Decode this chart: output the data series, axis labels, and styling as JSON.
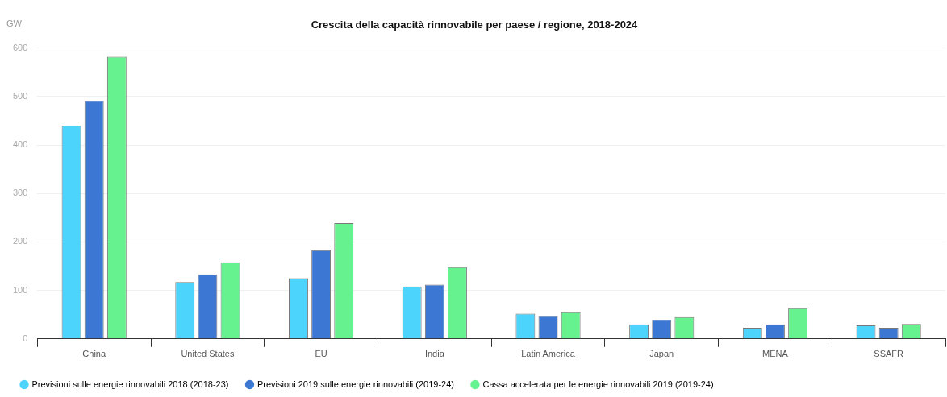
{
  "chart_data": {
    "type": "bar",
    "title": "Crescita della capacità rinnovabile per paese / regione, 2018-2024",
    "ylabel": "GW",
    "categories": [
      "China",
      "United States",
      "EU",
      "India",
      "Latin America",
      "Japan",
      "MENA",
      "SSAFR"
    ],
    "series": [
      {
        "name": "Previsioni sulle energie rinnovabili 2018 (2018-23)",
        "color": "#4dd4fd",
        "values": [
          440,
          117,
          125,
          108,
          52,
          30,
          23,
          28
        ]
      },
      {
        "name": "Previsioni 2019 sulle energie rinnovabili (2019-24)",
        "color": "#3c78d3",
        "values": [
          491,
          133,
          183,
          112,
          47,
          39,
          30,
          23
        ]
      },
      {
        "name": "Cassa accelerata per le energie rinnovabili 2019 (2019-24)",
        "color": "#66f28f",
        "values": [
          582,
          158,
          239,
          148,
          55,
          45,
          63,
          31
        ]
      }
    ],
    "ylim": [
      0,
      600
    ],
    "yticks": [
      0,
      100,
      200,
      300,
      400,
      500,
      600
    ],
    "grid": "y",
    "legend": "bottom left"
  }
}
